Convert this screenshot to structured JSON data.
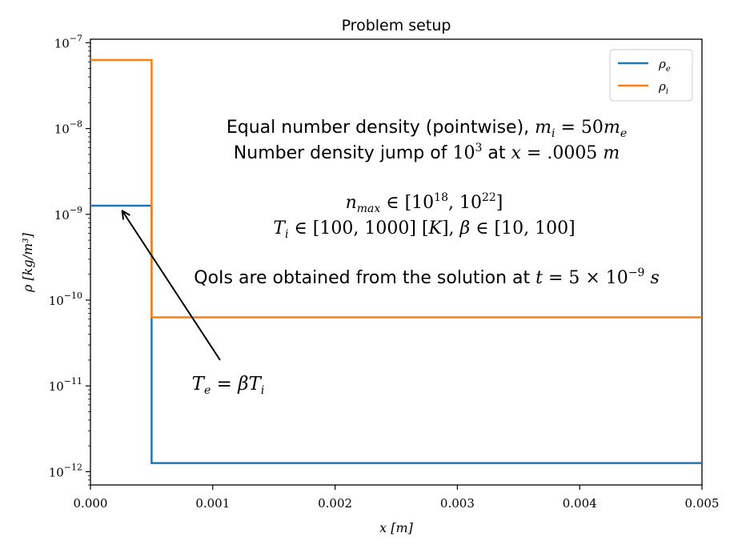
{
  "chart_data": {
    "type": "line",
    "title": "Problem setup",
    "xlabel": "x [m]",
    "ylabel": "ρ [kg/m³]",
    "xlim": [
      0.0,
      0.005
    ],
    "ylim": [
      7e-13,
      1.1e-07
    ],
    "yscale": "log",
    "grid": false,
    "legend_position": "top-right",
    "x_ticks": [
      {
        "value": 0.0,
        "label": "0.000"
      },
      {
        "value": 0.001,
        "label": "0.001"
      },
      {
        "value": 0.002,
        "label": "0.002"
      },
      {
        "value": 0.003,
        "label": "0.003"
      },
      {
        "value": 0.004,
        "label": "0.004"
      },
      {
        "value": 0.005,
        "label": "0.005"
      }
    ],
    "y_ticks": [
      {
        "value": 1e-07,
        "base": "10",
        "exp": "−7"
      },
      {
        "value": 1e-08,
        "base": "10",
        "exp": "−8"
      },
      {
        "value": 1e-09,
        "base": "10",
        "exp": "−9"
      },
      {
        "value": 1e-10,
        "base": "10",
        "exp": "−10"
      },
      {
        "value": 1e-11,
        "base": "10",
        "exp": "−11"
      },
      {
        "value": 1e-12,
        "base": "10",
        "exp": "−12"
      }
    ],
    "series": [
      {
        "name": "ρe",
        "color": "#1f77b4",
        "x": [
          0.0,
          0.0005,
          0.0005,
          0.005
        ],
        "y": [
          1.26e-09,
          1.26e-09,
          1.26e-12,
          1.26e-12
        ]
      },
      {
        "name": "ρi",
        "color": "#ff7f0e",
        "x": [
          0.0,
          0.0005,
          0.0005,
          0.005
        ],
        "y": [
          6.3e-08,
          6.3e-08,
          6.3e-11,
          6.3e-11
        ]
      }
    ],
    "annotations": {
      "line1": "Equal number density (pointwise), mi = 50me",
      "line2": "Number density jump of 10³ at x = .0005 m",
      "line3": "nmax ∈ [10¹⁸, 10²²]",
      "line4": "Ti ∈ [100, 1000] [K], β ∈ [10, 100]",
      "line5": "QoIs are obtained from the solution at t = 5 × 10⁻⁹ s",
      "arrow_label": "Te = βTi",
      "arrow_target": {
        "x": 0.00026,
        "y": 1.1e-09
      },
      "arrow_tail": {
        "x": 0.00106,
        "y": 2e-11
      }
    }
  }
}
